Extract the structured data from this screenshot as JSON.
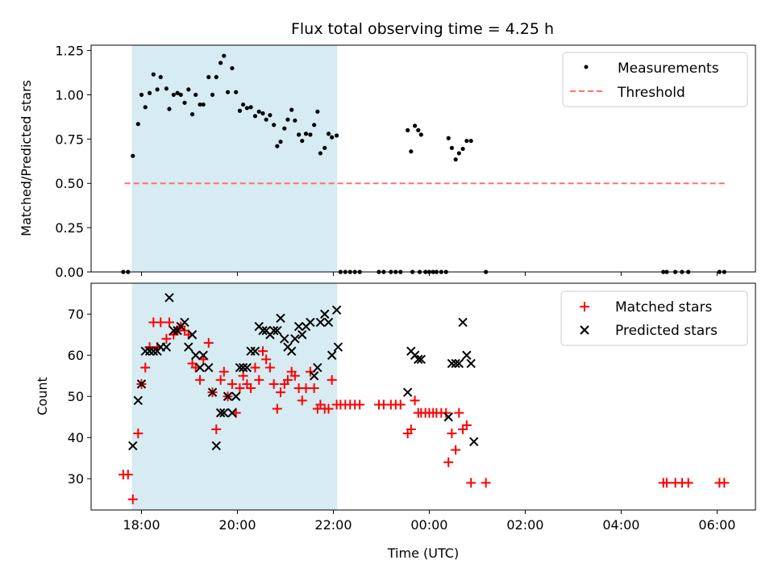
{
  "title": "Flux total observing time = 4.25 h",
  "colors": {
    "measurement": "#000000",
    "threshold": "#ff7070",
    "matched": "#ff0000",
    "predicted": "#000000",
    "shade": "#add8e6"
  },
  "chart_data": [
    {
      "type": "scatter",
      "ylabel": "Matched/Predicted stars",
      "xlabel": "",
      "x_unit": "hours since 00:00 UTC of first day",
      "xlim": [
        16.95,
        30.8
      ],
      "ylim": [
        0,
        1.28
      ],
      "yticks": [
        "0.00",
        "0.25",
        "0.50",
        "0.75",
        "1.00",
        "1.25"
      ],
      "ytick_values": [
        0,
        0.25,
        0.5,
        0.75,
        1.0,
        1.25
      ],
      "xtick_values": [
        18,
        20,
        22,
        24,
        26,
        28,
        30
      ],
      "shaded_span": [
        17.8,
        22.08
      ],
      "legend_position": "upper right",
      "legend": [
        "Measurements",
        "Threshold"
      ],
      "threshold": {
        "value": 0.5,
        "x_range": [
          17.65,
          30.2
        ]
      },
      "series": [
        {
          "name": "Measurements",
          "points": [
            [
              17.62,
              0
            ],
            [
              17.72,
              0
            ],
            [
              17.82,
              0.655
            ],
            [
              17.93,
              0.835
            ],
            [
              18.0,
              1.0
            ],
            [
              18.08,
              0.93
            ],
            [
              18.17,
              1.01
            ],
            [
              18.25,
              1.115
            ],
            [
              18.33,
              1.03
            ],
            [
              18.4,
              1.1
            ],
            [
              18.52,
              1.035
            ],
            [
              18.58,
              0.92
            ],
            [
              18.67,
              1.0
            ],
            [
              18.75,
              1.01
            ],
            [
              18.82,
              1.0
            ],
            [
              18.9,
              0.955
            ],
            [
              18.98,
              1.03
            ],
            [
              19.06,
              0.89
            ],
            [
              19.13,
              1.0
            ],
            [
              19.22,
              0.945
            ],
            [
              19.29,
              0.945
            ],
            [
              19.4,
              1.1
            ],
            [
              19.48,
              1.0
            ],
            [
              19.56,
              1.1
            ],
            [
              19.65,
              1.18
            ],
            [
              19.72,
              1.22
            ],
            [
              19.8,
              1.015
            ],
            [
              19.89,
              1.15
            ],
            [
              19.97,
              1.015
            ],
            [
              20.05,
              0.91
            ],
            [
              20.12,
              0.945
            ],
            [
              20.2,
              0.925
            ],
            [
              20.28,
              0.93
            ],
            [
              20.37,
              0.88
            ],
            [
              20.45,
              0.905
            ],
            [
              20.53,
              0.895
            ],
            [
              20.6,
              0.86
            ],
            [
              20.68,
              0.885
            ],
            [
              20.76,
              0.83
            ],
            [
              20.83,
              0.71
            ],
            [
              20.9,
              0.735
            ],
            [
              20.98,
              0.81
            ],
            [
              21.05,
              0.86
            ],
            [
              21.13,
              0.915
            ],
            [
              21.2,
              0.855
            ],
            [
              21.28,
              0.775
            ],
            [
              21.35,
              0.74
            ],
            [
              21.43,
              0.78
            ],
            [
              21.52,
              0.775
            ],
            [
              21.6,
              0.83
            ],
            [
              21.67,
              0.905
            ],
            [
              21.73,
              0.67
            ],
            [
              21.82,
              0.7
            ],
            [
              21.9,
              0.78
            ],
            [
              21.97,
              0.76
            ],
            [
              22.07,
              0.77
            ],
            [
              22.15,
              0
            ],
            [
              22.25,
              0
            ],
            [
              22.35,
              0
            ],
            [
              22.45,
              0
            ],
            [
              22.55,
              0
            ],
            [
              22.95,
              0
            ],
            [
              23.05,
              0
            ],
            [
              23.2,
              0
            ],
            [
              23.3,
              0
            ],
            [
              23.4,
              0
            ],
            [
              23.55,
              0.8
            ],
            [
              23.62,
              0.68
            ],
            [
              23.7,
              0.825
            ],
            [
              23.77,
              0.8
            ],
            [
              23.83,
              0.775
            ],
            [
              23.65,
              0
            ],
            [
              23.8,
              0
            ],
            [
              23.92,
              0
            ],
            [
              24.0,
              0
            ],
            [
              24.08,
              0
            ],
            [
              24.15,
              0
            ],
            [
              24.25,
              0
            ],
            [
              24.35,
              0
            ],
            [
              24.4,
              0.755
            ],
            [
              24.47,
              0.7
            ],
            [
              24.55,
              0.635
            ],
            [
              24.62,
              0.67
            ],
            [
              24.7,
              0.695
            ],
            [
              24.78,
              0.74
            ],
            [
              24.87,
              0.74
            ],
            [
              25.18,
              0
            ],
            [
              28.88,
              0
            ],
            [
              28.95,
              0
            ],
            [
              29.13,
              0
            ],
            [
              29.27,
              0
            ],
            [
              29.4,
              0
            ],
            [
              30.05,
              0
            ],
            [
              30.15,
              0
            ]
          ]
        }
      ]
    },
    {
      "type": "scatter",
      "ylabel": "Count",
      "xlabel": "Time (UTC)",
      "x_unit": "hours since 00:00 UTC of first day",
      "xlim": [
        16.95,
        30.8
      ],
      "ylim": [
        22.4,
        77.5
      ],
      "yticks": [
        "30",
        "40",
        "50",
        "60",
        "70"
      ],
      "ytick_values": [
        30,
        40,
        50,
        60,
        70
      ],
      "xtick_values": [
        18,
        20,
        22,
        24,
        26,
        28,
        30
      ],
      "xticks": [
        "18:00",
        "20:00",
        "22:00",
        "00:00",
        "02:00",
        "04:00",
        "06:00"
      ],
      "shaded_span": [
        17.8,
        22.08
      ],
      "legend_position": "upper right",
      "legend": [
        "Matched stars",
        "Predicted stars"
      ],
      "series": [
        {
          "name": "Matched stars",
          "marker": "plus",
          "points": [
            [
              17.62,
              31
            ],
            [
              17.72,
              31
            ],
            [
              17.82,
              25
            ],
            [
              17.93,
              41
            ],
            [
              18.0,
              53
            ],
            [
              18.08,
              57
            ],
            [
              18.17,
              62
            ],
            [
              18.25,
              68
            ],
            [
              18.33,
              62
            ],
            [
              18.4,
              68
            ],
            [
              18.52,
              64
            ],
            [
              18.58,
              68
            ],
            [
              18.67,
              65
            ],
            [
              18.75,
              66
            ],
            [
              18.82,
              67
            ],
            [
              18.9,
              66
            ],
            [
              18.98,
              65
            ],
            [
              19.06,
              58
            ],
            [
              19.13,
              57
            ],
            [
              19.22,
              54
            ],
            [
              19.29,
              59
            ],
            [
              19.4,
              63
            ],
            [
              19.48,
              51
            ],
            [
              19.56,
              42
            ],
            [
              19.65,
              54
            ],
            [
              19.72,
              56
            ],
            [
              19.8,
              50
            ],
            [
              19.89,
              53
            ],
            [
              19.97,
              46
            ],
            [
              20.05,
              52
            ],
            [
              20.12,
              55
            ],
            [
              20.2,
              53
            ],
            [
              20.28,
              52
            ],
            [
              20.37,
              57
            ],
            [
              20.45,
              54
            ],
            [
              20.53,
              61
            ],
            [
              20.6,
              59
            ],
            [
              20.68,
              57
            ],
            [
              20.76,
              53
            ],
            [
              20.83,
              47
            ],
            [
              20.9,
              51
            ],
            [
              20.98,
              53
            ],
            [
              21.05,
              54
            ],
            [
              21.13,
              56
            ],
            [
              21.2,
              55
            ],
            [
              21.28,
              52
            ],
            [
              21.35,
              49
            ],
            [
              21.43,
              52
            ],
            [
              21.52,
              56
            ],
            [
              21.6,
              52
            ],
            [
              21.67,
              47
            ],
            [
              21.73,
              48
            ],
            [
              21.82,
              47
            ],
            [
              21.9,
              47
            ],
            [
              21.97,
              54
            ],
            [
              22.07,
              48
            ],
            [
              22.15,
              48
            ],
            [
              22.25,
              48
            ],
            [
              22.35,
              48
            ],
            [
              22.45,
              48
            ],
            [
              22.55,
              48
            ],
            [
              22.95,
              48
            ],
            [
              23.05,
              48
            ],
            [
              23.2,
              48
            ],
            [
              23.3,
              48
            ],
            [
              23.4,
              48
            ],
            [
              23.55,
              41
            ],
            [
              23.62,
              42
            ],
            [
              23.7,
              49
            ],
            [
              23.77,
              46
            ],
            [
              23.83,
              46
            ],
            [
              23.92,
              46
            ],
            [
              24.0,
              46
            ],
            [
              24.08,
              46
            ],
            [
              24.15,
              46
            ],
            [
              24.25,
              46
            ],
            [
              24.35,
              46
            ],
            [
              24.4,
              34
            ],
            [
              24.47,
              41
            ],
            [
              24.55,
              37
            ],
            [
              24.62,
              46
            ],
            [
              24.7,
              42
            ],
            [
              24.78,
              43
            ],
            [
              24.87,
              29
            ],
            [
              25.18,
              29
            ],
            [
              28.88,
              29
            ],
            [
              28.95,
              29
            ],
            [
              29.13,
              29
            ],
            [
              29.27,
              29
            ],
            [
              29.4,
              29
            ],
            [
              30.05,
              29
            ],
            [
              30.15,
              29
            ]
          ]
        },
        {
          "name": "Predicted stars",
          "marker": "x",
          "points": [
            [
              17.82,
              38
            ],
            [
              17.93,
              49
            ],
            [
              18.0,
              53
            ],
            [
              18.08,
              61
            ],
            [
              18.17,
              61
            ],
            [
              18.25,
              61
            ],
            [
              18.33,
              61
            ],
            [
              18.4,
              62
            ],
            [
              18.52,
              62
            ],
            [
              18.58,
              74
            ],
            [
              18.67,
              66
            ],
            [
              18.75,
              66
            ],
            [
              18.82,
              67
            ],
            [
              18.9,
              68
            ],
            [
              18.98,
              62
            ],
            [
              19.06,
              65
            ],
            [
              19.13,
              60
            ],
            [
              19.22,
              57
            ],
            [
              19.29,
              60
            ],
            [
              19.4,
              57
            ],
            [
              19.48,
              51
            ],
            [
              19.56,
              38
            ],
            [
              19.65,
              46
            ],
            [
              19.72,
              46
            ],
            [
              19.8,
              50
            ],
            [
              19.89,
              46
            ],
            [
              19.97,
              50
            ],
            [
              20.05,
              57
            ],
            [
              20.12,
              57
            ],
            [
              20.2,
              57
            ],
            [
              20.28,
              61
            ],
            [
              20.37,
              61
            ],
            [
              20.45,
              67
            ],
            [
              20.53,
              66
            ],
            [
              20.6,
              66
            ],
            [
              20.68,
              65
            ],
            [
              20.76,
              66
            ],
            [
              20.83,
              66
            ],
            [
              20.9,
              69
            ],
            [
              20.98,
              64
            ],
            [
              21.05,
              62
            ],
            [
              21.13,
              61
            ],
            [
              21.2,
              64
            ],
            [
              21.28,
              67
            ],
            [
              21.35,
              65
            ],
            [
              21.43,
              67
            ],
            [
              21.52,
              68
            ],
            [
              21.6,
              55
            ],
            [
              21.67,
              57
            ],
            [
              21.73,
              68
            ],
            [
              21.82,
              70
            ],
            [
              21.9,
              68
            ],
            [
              21.97,
              60
            ],
            [
              22.07,
              71
            ],
            [
              22.1,
              62
            ],
            [
              23.55,
              51
            ],
            [
              23.62,
              61
            ],
            [
              23.7,
              60
            ],
            [
              23.77,
              59
            ],
            [
              23.83,
              59
            ],
            [
              24.4,
              45
            ],
            [
              24.47,
              58
            ],
            [
              24.55,
              58
            ],
            [
              24.62,
              58
            ],
            [
              24.7,
              68
            ],
            [
              24.78,
              60
            ],
            [
              24.87,
              58
            ],
            [
              24.93,
              39
            ]
          ]
        }
      ]
    }
  ]
}
